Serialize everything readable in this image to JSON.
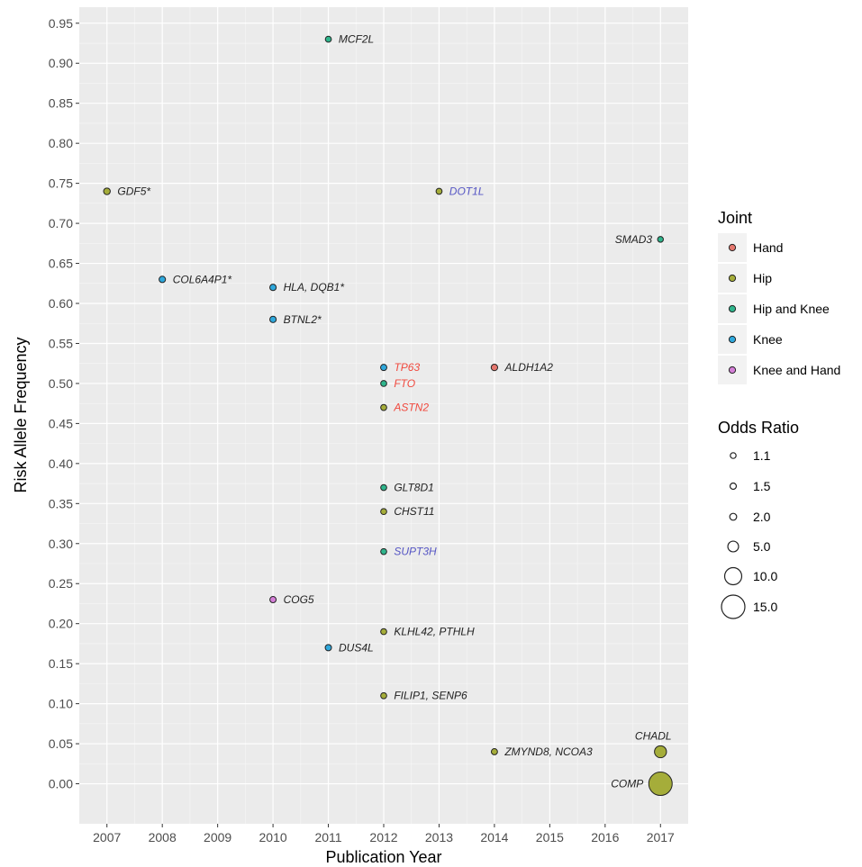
{
  "chart_data": {
    "type": "scatter",
    "xlabel": "Publication Year",
    "ylabel": "Risk Allele Frequency",
    "xlim": [
      2006.5,
      2017.5
    ],
    "ylim": [
      -0.05,
      0.97
    ],
    "x_ticks": [
      "2007",
      "2008",
      "2009",
      "2010",
      "2011",
      "2012",
      "2013",
      "2014",
      "2015",
      "2016",
      "2017"
    ],
    "y_ticks": [
      "0.00",
      "0.05",
      "0.10",
      "0.15",
      "0.20",
      "0.25",
      "0.30",
      "0.35",
      "0.40",
      "0.45",
      "0.50",
      "0.55",
      "0.60",
      "0.65",
      "0.70",
      "0.75",
      "0.80",
      "0.85",
      "0.90",
      "0.95"
    ],
    "grid": true,
    "legend_position": "right",
    "joint_colors": {
      "Hand": "#e5776e",
      "Hip": "#a5ad3a",
      "Hip and Knee": "#2fb58c",
      "Knee": "#2fa8dc",
      "Knee and Hand": "#d47fd7"
    },
    "label_colors": {
      "red": "#f0493e",
      "blue": "#5555c4",
      "black": "#222222"
    },
    "points": [
      {
        "x": 2007,
        "y": 0.74,
        "joint": "Hip",
        "or": 1.8,
        "label": "GDF5*",
        "label_side": "right",
        "label_color": "black"
      },
      {
        "x": 2008,
        "y": 0.63,
        "joint": "Knee",
        "or": 1.6,
        "label": "COL6A4P1*",
        "label_side": "right",
        "label_color": "black"
      },
      {
        "x": 2010,
        "y": 0.62,
        "joint": "Knee",
        "or": 1.6,
        "label": "HLA, DQB1*",
        "label_side": "right",
        "label_color": "black"
      },
      {
        "x": 2010,
        "y": 0.58,
        "joint": "Knee",
        "or": 1.6,
        "label": "BTNL2*",
        "label_side": "right",
        "label_color": "black"
      },
      {
        "x": 2010,
        "y": 0.23,
        "joint": "Knee and Hand",
        "or": 1.5,
        "label": "COG5",
        "label_side": "right",
        "label_color": "black"
      },
      {
        "x": 2011,
        "y": 0.93,
        "joint": "Hip and Knee",
        "or": 1.3,
        "label": "MCF2L",
        "label_side": "right",
        "label_color": "black"
      },
      {
        "x": 2011,
        "y": 0.17,
        "joint": "Knee",
        "or": 1.5,
        "label": "DUS4L",
        "label_side": "right",
        "label_color": "black"
      },
      {
        "x": 2012,
        "y": 0.52,
        "joint": "Knee",
        "or": 1.5,
        "label": "TP63",
        "label_side": "right",
        "label_color": "red"
      },
      {
        "x": 2012,
        "y": 0.5,
        "joint": "Hip and Knee",
        "or": 1.3,
        "label": "FTO",
        "label_side": "right",
        "label_color": "red"
      },
      {
        "x": 2012,
        "y": 0.47,
        "joint": "Hip",
        "or": 1.3,
        "label": "ASTN2",
        "label_side": "right",
        "label_color": "red"
      },
      {
        "x": 2012,
        "y": 0.37,
        "joint": "Hip and Knee",
        "or": 1.3,
        "label": "GLT8D1",
        "label_side": "right",
        "label_color": "black"
      },
      {
        "x": 2012,
        "y": 0.34,
        "joint": "Hip",
        "or": 1.3,
        "label": "CHST11",
        "label_side": "right",
        "label_color": "black"
      },
      {
        "x": 2012,
        "y": 0.29,
        "joint": "Hip and Knee",
        "or": 1.3,
        "label": "SUPT3H",
        "label_side": "right",
        "label_color": "blue"
      },
      {
        "x": 2012,
        "y": 0.19,
        "joint": "Hip",
        "or": 1.3,
        "label": "KLHL42, PTHLH",
        "label_side": "right",
        "label_color": "black"
      },
      {
        "x": 2012,
        "y": 0.11,
        "joint": "Hip",
        "or": 1.3,
        "label": "FILIP1, SENP6",
        "label_side": "right",
        "label_color": "black"
      },
      {
        "x": 2013,
        "y": 0.74,
        "joint": "Hip",
        "or": 1.3,
        "label": "DOT1L",
        "label_side": "right",
        "label_color": "blue"
      },
      {
        "x": 2014,
        "y": 0.52,
        "joint": "Hand",
        "or": 1.7,
        "label": "ALDH1A2",
        "label_side": "right",
        "label_color": "black"
      },
      {
        "x": 2014,
        "y": 0.04,
        "joint": "Hip",
        "or": 1.4,
        "label": "ZMYND8, NCOA3",
        "label_side": "right",
        "label_color": "black"
      },
      {
        "x": 2017,
        "y": 0.68,
        "joint": "Hip and Knee",
        "or": 1.1,
        "label": "SMAD3",
        "label_side": "left",
        "label_color": "black"
      },
      {
        "x": 2017,
        "y": 0.04,
        "joint": "Hip",
        "or": 6.0,
        "label": "CHADL",
        "label_side": "top",
        "label_color": "black"
      },
      {
        "x": 2017,
        "y": 0.0,
        "joint": "Hip",
        "or": 15.0,
        "label": "COMP",
        "label_side": "left",
        "label_color": "black"
      }
    ],
    "legend": {
      "joint": {
        "title": "Joint",
        "items": [
          "Hand",
          "Hip",
          "Hip and Knee",
          "Knee",
          "Knee and Hand"
        ]
      },
      "odds_ratio": {
        "title": "Odds Ratio",
        "items": [
          {
            "label": "1.1",
            "value": 1.1
          },
          {
            "label": "1.5",
            "value": 1.5
          },
          {
            "label": "2.0",
            "value": 2.0
          },
          {
            "label": "5.0",
            "value": 5.0
          },
          {
            "label": "10.0",
            "value": 10.0
          },
          {
            "label": "15.0",
            "value": 15.0
          }
        ]
      }
    }
  }
}
